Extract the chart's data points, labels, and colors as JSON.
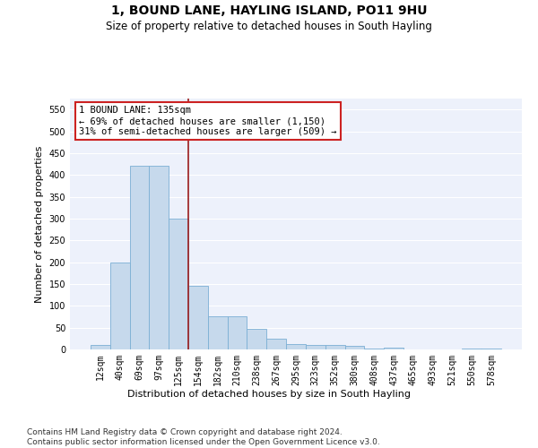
{
  "title1": "1, BOUND LANE, HAYLING ISLAND, PO11 9HU",
  "title2": "Size of property relative to detached houses in South Hayling",
  "xlabel": "Distribution of detached houses by size in South Hayling",
  "ylabel": "Number of detached properties",
  "categories": [
    "12sqm",
    "40sqm",
    "69sqm",
    "97sqm",
    "125sqm",
    "154sqm",
    "182sqm",
    "210sqm",
    "238sqm",
    "267sqm",
    "295sqm",
    "323sqm",
    "352sqm",
    "380sqm",
    "408sqm",
    "437sqm",
    "465sqm",
    "493sqm",
    "521sqm",
    "550sqm",
    "578sqm"
  ],
  "values": [
    10,
    200,
    420,
    420,
    300,
    145,
    75,
    75,
    48,
    25,
    12,
    10,
    10,
    8,
    3,
    5,
    0,
    0,
    0,
    3,
    3
  ],
  "bar_color": "#c6d9ec",
  "bar_edge_color": "#7bafd4",
  "vline_x": 4.5,
  "vline_color": "#9b1c1c",
  "annotation_text": "1 BOUND LANE: 135sqm\n← 69% of detached houses are smaller (1,150)\n31% of semi-detached houses are larger (509) →",
  "annotation_box_color": "#ffffff",
  "annotation_box_edge": "#cc2222",
  "ylim": [
    0,
    575
  ],
  "yticks": [
    0,
    50,
    100,
    150,
    200,
    250,
    300,
    350,
    400,
    450,
    500,
    550
  ],
  "bg_color": "#edf1fb",
  "footnote": "Contains HM Land Registry data © Crown copyright and database right 2024.\nContains public sector information licensed under the Open Government Licence v3.0.",
  "title1_fontsize": 10,
  "title2_fontsize": 8.5,
  "xlabel_fontsize": 8,
  "ylabel_fontsize": 8,
  "tick_fontsize": 7,
  "annotation_fontsize": 7.5,
  "footnote_fontsize": 6.5
}
